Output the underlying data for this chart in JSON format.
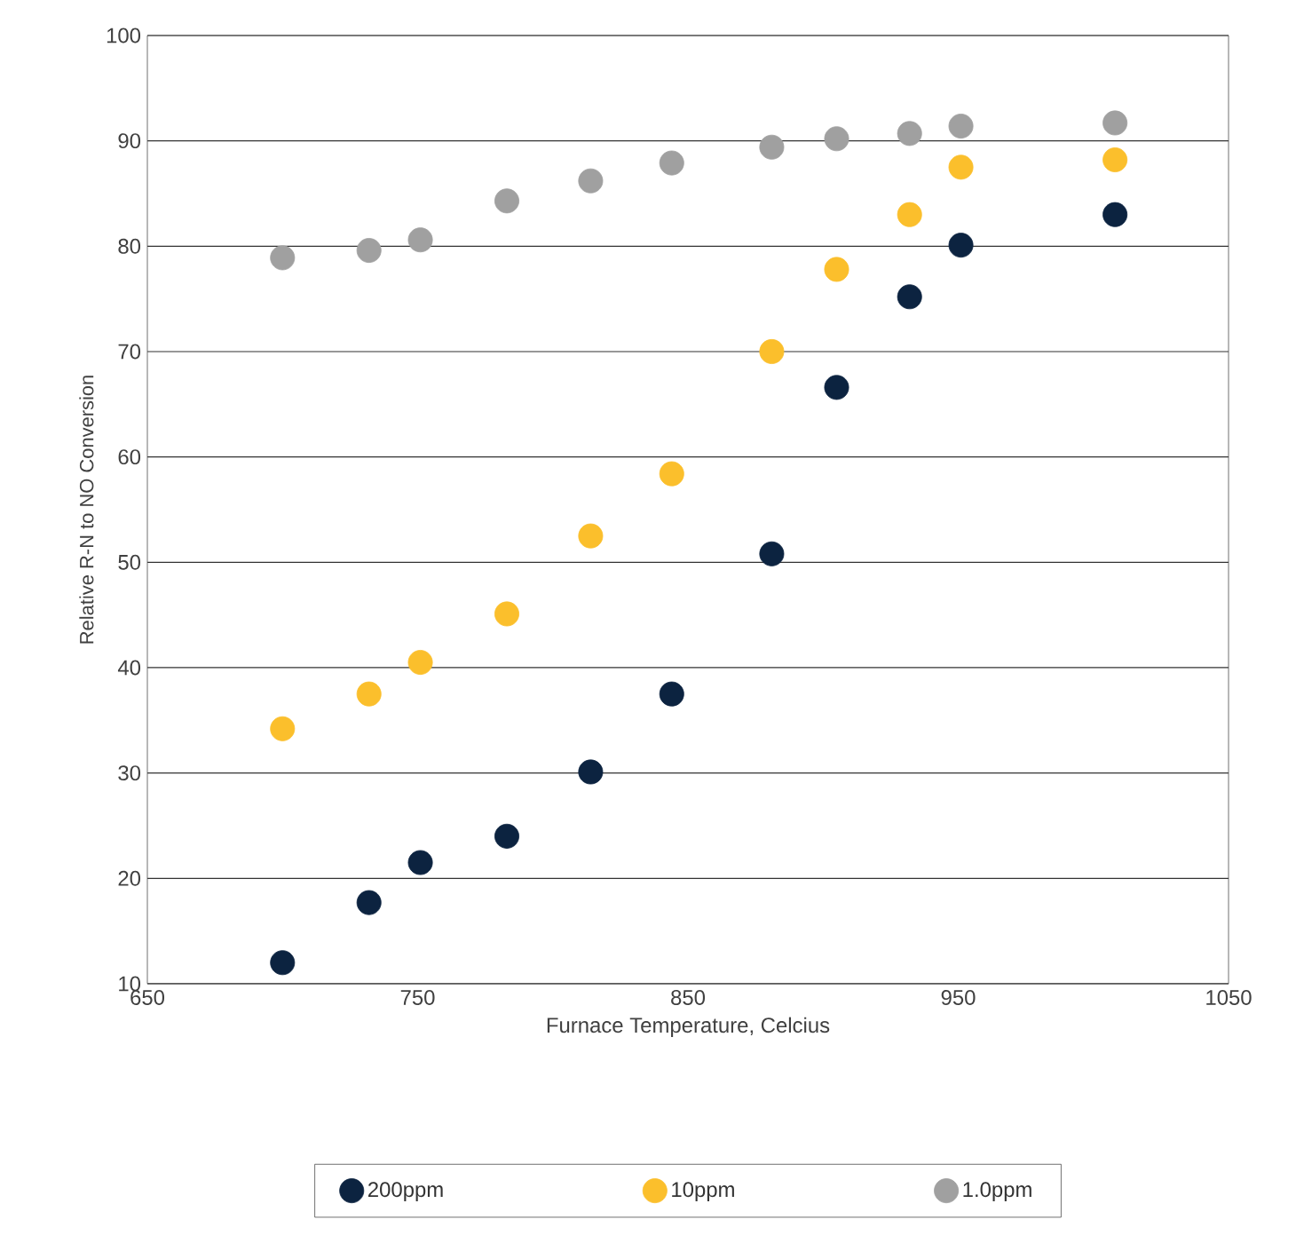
{
  "chart_data": {
    "type": "scatter",
    "xlabel": "Furnace Temperature, Celcius",
    "ylabel": "Relative R-N to NO Conversion",
    "x": [
      700,
      732,
      751,
      783,
      814,
      844,
      881,
      905,
      932,
      951,
      1008
    ],
    "series": [
      {
        "name": "200ppm",
        "color": "#0c2340",
        "values": [
          12.0,
          17.7,
          21.5,
          24.0,
          30.1,
          37.5,
          50.8,
          66.6,
          75.2,
          80.1,
          83.0
        ]
      },
      {
        "name": "10ppm",
        "color": "#fbbf2c",
        "values": [
          34.2,
          37.5,
          40.5,
          45.1,
          52.5,
          58.4,
          70.0,
          77.8,
          83.0,
          87.5,
          88.2
        ]
      },
      {
        "name": "1.0ppm",
        "color": "#a0a0a0",
        "values": [
          78.9,
          79.6,
          80.6,
          84.3,
          86.2,
          87.9,
          89.4,
          90.2,
          90.7,
          91.4,
          91.7
        ]
      }
    ],
    "xlim": [
      650,
      1050
    ],
    "xticks": [
      650,
      750,
      850,
      950,
      1050
    ],
    "ylim": [
      10,
      100
    ],
    "yticks": [
      10,
      20,
      30,
      40,
      50,
      60,
      70,
      80,
      90,
      100
    ],
    "grid": "y",
    "legend": "bottom",
    "marker": "circle"
  }
}
